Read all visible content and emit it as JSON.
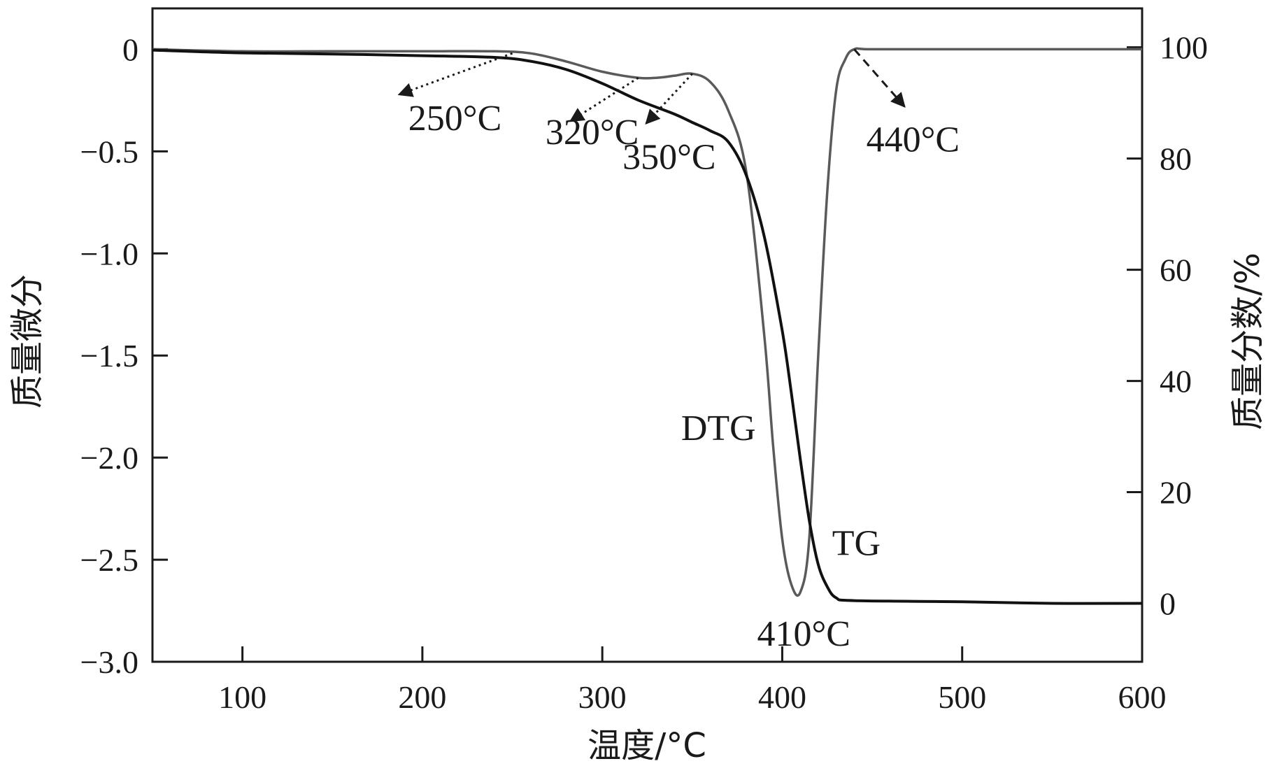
{
  "chart_data": {
    "type": "line",
    "xlabel": "温度/°C",
    "ylabel_left": "质量微分",
    "ylabel_right": "质量分数/%",
    "xlim": [
      50,
      600
    ],
    "ylim_left": [
      -3.0,
      0.2
    ],
    "ylim_right": [
      -10.5,
      107
    ],
    "x_ticks": [
      100,
      200,
      300,
      400,
      500,
      600
    ],
    "y_left_ticks": [
      0,
      -0.5,
      -1.0,
      -1.5,
      -2.0,
      -2.5,
      -3.0
    ],
    "y_left_tick_labels": [
      "0",
      "−0.5",
      "−1.0",
      "−1.5",
      "−2.0",
      "−2.5",
      "−3.0"
    ],
    "y_right_ticks": [
      100,
      80,
      60,
      40,
      20,
      0
    ],
    "y_right_tick_labels": [
      "100",
      "80",
      "60",
      "40",
      "20",
      "0"
    ],
    "grid": false,
    "series": [
      {
        "name": "DTG",
        "axis": "left",
        "color": "#5a5a5a",
        "x": [
          50,
          100,
          150,
          200,
          240,
          260,
          280,
          300,
          320,
          330,
          340,
          350,
          360,
          370,
          380,
          390,
          395,
          400,
          405,
          410,
          415,
          420,
          425,
          430,
          435,
          440,
          450,
          500,
          550,
          600
        ],
        "y": [
          0.0,
          -0.01,
          -0.01,
          -0.01,
          -0.01,
          -0.02,
          -0.06,
          -0.11,
          -0.14,
          -0.14,
          -0.13,
          -0.12,
          -0.16,
          -0.3,
          -0.6,
          -1.4,
          -1.95,
          -2.4,
          -2.62,
          -2.66,
          -2.4,
          -1.5,
          -0.7,
          -0.2,
          -0.05,
          0.0,
          0.0,
          0.0,
          0.0,
          0.0
        ]
      },
      {
        "name": "TG",
        "axis": "right",
        "color": "#111111",
        "x": [
          50,
          100,
          150,
          200,
          240,
          260,
          280,
          300,
          320,
          340,
          350,
          360,
          370,
          380,
          390,
          400,
          405,
          410,
          415,
          420,
          425,
          430,
          440,
          500,
          550,
          600
        ],
        "y": [
          99.5,
          99.0,
          98.8,
          98.5,
          98.2,
          97.5,
          96.0,
          93.5,
          90.5,
          88.0,
          86.5,
          85.0,
          83.0,
          77.0,
          66.0,
          49.0,
          38.0,
          26.0,
          15.0,
          7.0,
          3.0,
          1.0,
          0.5,
          0.3,
          0.0,
          0.0
        ]
      }
    ],
    "annotations": [
      {
        "text": "250°C",
        "x": 250,
        "y": -0.02
      },
      {
        "text": "320°C",
        "x": 320,
        "y": -0.14
      },
      {
        "text": "350°C",
        "x": 350,
        "y": -0.12
      },
      {
        "text": "440°C",
        "x": 440,
        "y": 0.0
      },
      {
        "text": "410°C",
        "x": 410,
        "y": -2.66
      },
      {
        "text": "DTG",
        "x": 390,
        "y": -1.9
      },
      {
        "text": "TG",
        "x": 425,
        "y": 3.0
      }
    ]
  }
}
